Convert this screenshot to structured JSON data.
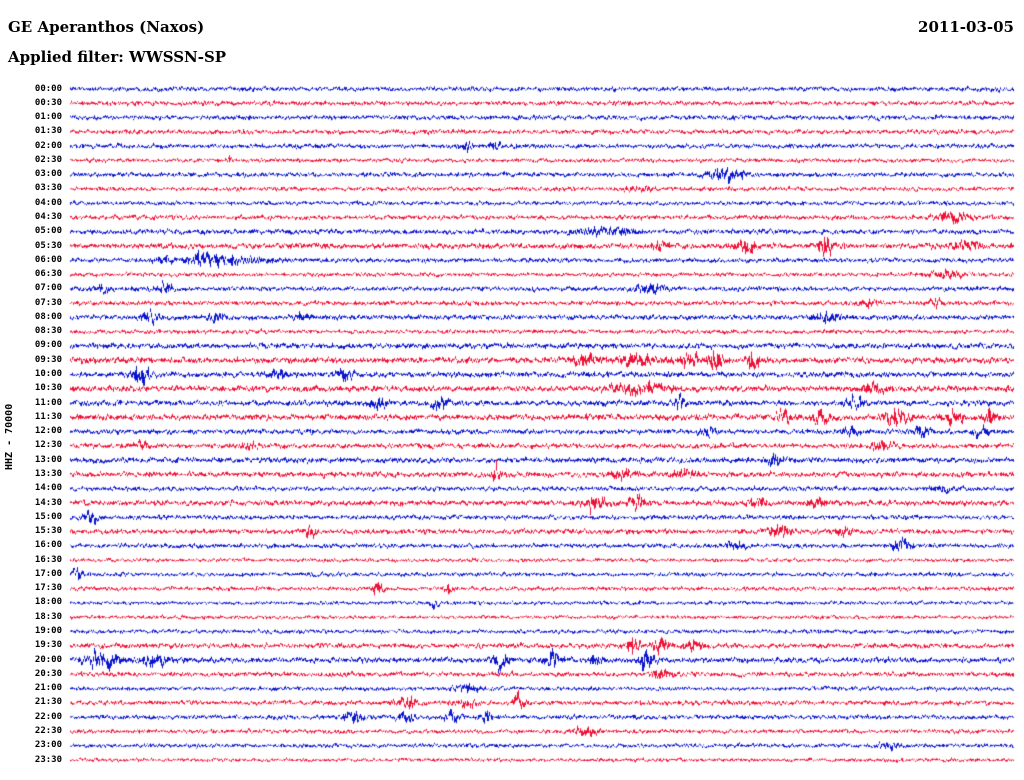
{
  "chart_data": {
    "type": "line",
    "subtype": "helicorder-seismogram",
    "title": "GE Aperanthos (Naxos)",
    "date": "2011-03-05",
    "filter_label": "Applied filter: WWSSN-SP",
    "side_label": "HHZ - 70000",
    "row_minutes": 30,
    "colors": {
      "blue": "#0a14cc",
      "red": "#ee1136"
    },
    "rows": [
      {
        "t": "00:00",
        "c": "blue",
        "a": 1.0
      },
      {
        "t": "00:30",
        "c": "red",
        "a": 1.0
      },
      {
        "t": "01:00",
        "c": "blue",
        "a": 1.0
      },
      {
        "t": "01:30",
        "c": "red",
        "a": 1.0
      },
      {
        "t": "02:00",
        "c": "blue",
        "a": 1.0
      },
      {
        "t": "02:30",
        "c": "red",
        "a": 0.9
      },
      {
        "t": "03:00",
        "c": "blue",
        "a": 1.0
      },
      {
        "t": "03:30",
        "c": "red",
        "a": 0.9
      },
      {
        "t": "04:00",
        "c": "blue",
        "a": 0.9
      },
      {
        "t": "04:30",
        "c": "red",
        "a": 1.0
      },
      {
        "t": "05:00",
        "c": "blue",
        "a": 1.1
      },
      {
        "t": "05:30",
        "c": "red",
        "a": 1.2
      },
      {
        "t": "06:00",
        "c": "blue",
        "a": 1.0
      },
      {
        "t": "06:30",
        "c": "red",
        "a": 0.9
      },
      {
        "t": "07:00",
        "c": "blue",
        "a": 1.0
      },
      {
        "t": "07:30",
        "c": "red",
        "a": 1.0
      },
      {
        "t": "08:00",
        "c": "blue",
        "a": 1.1
      },
      {
        "t": "08:30",
        "c": "red",
        "a": 0.9
      },
      {
        "t": "09:00",
        "c": "blue",
        "a": 1.2
      },
      {
        "t": "09:30",
        "c": "red",
        "a": 1.3
      },
      {
        "t": "10:00",
        "c": "blue",
        "a": 1.2
      },
      {
        "t": "10:30",
        "c": "red",
        "a": 1.3
      },
      {
        "t": "11:00",
        "c": "blue",
        "a": 1.2
      },
      {
        "t": "11:30",
        "c": "red",
        "a": 1.3
      },
      {
        "t": "12:00",
        "c": "blue",
        "a": 1.1
      },
      {
        "t": "12:30",
        "c": "red",
        "a": 1.1
      },
      {
        "t": "13:00",
        "c": "blue",
        "a": 1.2
      },
      {
        "t": "13:30",
        "c": "red",
        "a": 1.2
      },
      {
        "t": "14:00",
        "c": "blue",
        "a": 1.0
      },
      {
        "t": "14:30",
        "c": "red",
        "a": 1.2
      },
      {
        "t": "15:00",
        "c": "blue",
        "a": 1.0
      },
      {
        "t": "15:30",
        "c": "red",
        "a": 1.1
      },
      {
        "t": "16:00",
        "c": "blue",
        "a": 1.0
      },
      {
        "t": "16:30",
        "c": "red",
        "a": 0.8
      },
      {
        "t": "17:00",
        "c": "blue",
        "a": 0.9
      },
      {
        "t": "17:30",
        "c": "red",
        "a": 0.9
      },
      {
        "t": "18:00",
        "c": "blue",
        "a": 0.8
      },
      {
        "t": "18:30",
        "c": "red",
        "a": 0.8
      },
      {
        "t": "19:00",
        "c": "blue",
        "a": 0.9
      },
      {
        "t": "19:30",
        "c": "red",
        "a": 1.1
      },
      {
        "t": "20:00",
        "c": "blue",
        "a": 1.2
      },
      {
        "t": "20:30",
        "c": "red",
        "a": 1.0
      },
      {
        "t": "21:00",
        "c": "blue",
        "a": 0.9
      },
      {
        "t": "21:30",
        "c": "red",
        "a": 1.0
      },
      {
        "t": "22:00",
        "c": "blue",
        "a": 1.0
      },
      {
        "t": "22:30",
        "c": "red",
        "a": 0.9
      },
      {
        "t": "23:00",
        "c": "blue",
        "a": 0.9
      },
      {
        "t": "23:30",
        "c": "red",
        "a": 0.8
      }
    ],
    "events": [
      {
        "r": "02:00",
        "x": 0.42,
        "a": 1.5,
        "w": 0.006
      },
      {
        "r": "02:00",
        "x": 0.45,
        "a": 1.2,
        "w": 0.005
      },
      {
        "r": "02:30",
        "x": 0.168,
        "a": 2.5,
        "w": 0.0015
      },
      {
        "r": "03:00",
        "x": 0.695,
        "a": 3.2,
        "w": 0.012
      },
      {
        "r": "03:30",
        "x": 0.6,
        "a": 1.0,
        "w": 0.01
      },
      {
        "r": "04:30",
        "x": 0.935,
        "a": 2.0,
        "w": 0.012
      },
      {
        "r": "05:00",
        "x": 0.57,
        "a": 1.2,
        "w": 0.02
      },
      {
        "r": "05:30",
        "x": 0.625,
        "a": 1.8,
        "w": 0.006
      },
      {
        "r": "05:30",
        "x": 0.715,
        "a": 2.2,
        "w": 0.008
      },
      {
        "r": "05:30",
        "x": 0.8,
        "a": 4.5,
        "w": 0.005
      },
      {
        "r": "05:30",
        "x": 0.95,
        "a": 1.8,
        "w": 0.01
      },
      {
        "r": "06:00",
        "x": 0.1,
        "a": 1.5,
        "w": 0.008
      },
      {
        "r": "06:00",
        "x": 0.145,
        "a": 3.0,
        "w": 0.015
      },
      {
        "r": "06:00",
        "x": 0.19,
        "a": 1.2,
        "w": 0.02
      },
      {
        "r": "06:30",
        "x": 0.93,
        "a": 1.8,
        "w": 0.012
      },
      {
        "r": "07:00",
        "x": 0.035,
        "a": 2.0,
        "w": 0.006
      },
      {
        "r": "07:00",
        "x": 0.1,
        "a": 1.8,
        "w": 0.008
      },
      {
        "r": "07:00",
        "x": 0.615,
        "a": 2.2,
        "w": 0.01
      },
      {
        "r": "07:30",
        "x": 0.845,
        "a": 1.5,
        "w": 0.008
      },
      {
        "r": "07:30",
        "x": 0.915,
        "a": 1.6,
        "w": 0.006
      },
      {
        "r": "08:00",
        "x": 0.085,
        "a": 2.2,
        "w": 0.006
      },
      {
        "r": "08:00",
        "x": 0.155,
        "a": 1.8,
        "w": 0.006
      },
      {
        "r": "08:00",
        "x": 0.245,
        "a": 1.6,
        "w": 0.006
      },
      {
        "r": "08:00",
        "x": 0.8,
        "a": 1.4,
        "w": 0.01
      },
      {
        "r": "09:30",
        "x": 0.545,
        "a": 2.4,
        "w": 0.01
      },
      {
        "r": "09:30",
        "x": 0.6,
        "a": 1.8,
        "w": 0.012
      },
      {
        "r": "09:30",
        "x": 0.655,
        "a": 2.0,
        "w": 0.008
      },
      {
        "r": "09:30",
        "x": 0.685,
        "a": 2.8,
        "w": 0.006
      },
      {
        "r": "09:30",
        "x": 0.725,
        "a": 3.0,
        "w": 0.006
      },
      {
        "r": "10:00",
        "x": 0.075,
        "a": 3.2,
        "w": 0.007
      },
      {
        "r": "10:00",
        "x": 0.22,
        "a": 1.8,
        "w": 0.006
      },
      {
        "r": "10:00",
        "x": 0.29,
        "a": 1.8,
        "w": 0.006
      },
      {
        "r": "10:30",
        "x": 0.6,
        "a": 1.6,
        "w": 0.02
      },
      {
        "r": "10:30",
        "x": 0.85,
        "a": 1.8,
        "w": 0.008
      },
      {
        "r": "11:00",
        "x": 0.325,
        "a": 2.2,
        "w": 0.007
      },
      {
        "r": "11:00",
        "x": 0.39,
        "a": 2.2,
        "w": 0.007
      },
      {
        "r": "11:00",
        "x": 0.645,
        "a": 3.2,
        "w": 0.003
      },
      {
        "r": "11:00",
        "x": 0.83,
        "a": 1.8,
        "w": 0.006
      },
      {
        "r": "11:30",
        "x": 0.755,
        "a": 2.2,
        "w": 0.006
      },
      {
        "r": "11:30",
        "x": 0.795,
        "a": 2.4,
        "w": 0.006
      },
      {
        "r": "11:30",
        "x": 0.875,
        "a": 2.8,
        "w": 0.008
      },
      {
        "r": "11:30",
        "x": 0.935,
        "a": 2.0,
        "w": 0.006
      },
      {
        "r": "11:30",
        "x": 0.975,
        "a": 2.2,
        "w": 0.005
      },
      {
        "r": "12:00",
        "x": 0.675,
        "a": 1.8,
        "w": 0.006
      },
      {
        "r": "12:00",
        "x": 0.825,
        "a": 1.8,
        "w": 0.006
      },
      {
        "r": "12:00",
        "x": 0.9,
        "a": 2.2,
        "w": 0.006
      },
      {
        "r": "12:00",
        "x": 0.965,
        "a": 1.8,
        "w": 0.005
      },
      {
        "r": "12:30",
        "x": 0.075,
        "a": 1.8,
        "w": 0.006
      },
      {
        "r": "12:30",
        "x": 0.19,
        "a": 1.8,
        "w": 0.005
      },
      {
        "r": "12:30",
        "x": 0.86,
        "a": 1.6,
        "w": 0.008
      },
      {
        "r": "13:00",
        "x": 0.745,
        "a": 1.8,
        "w": 0.006
      },
      {
        "r": "13:30",
        "x": 0.45,
        "a": 3.0,
        "w": 0.003
      },
      {
        "r": "13:30",
        "x": 0.585,
        "a": 1.8,
        "w": 0.008
      },
      {
        "r": "13:30",
        "x": 0.65,
        "a": 1.6,
        "w": 0.008
      },
      {
        "r": "14:00",
        "x": 0.92,
        "a": 1.4,
        "w": 0.01
      },
      {
        "r": "14:30",
        "x": 0.555,
        "a": 2.2,
        "w": 0.008
      },
      {
        "r": "14:30",
        "x": 0.6,
        "a": 1.8,
        "w": 0.006
      },
      {
        "r": "14:30",
        "x": 0.73,
        "a": 1.8,
        "w": 0.006
      },
      {
        "r": "14:30",
        "x": 0.79,
        "a": 2.2,
        "w": 0.006
      },
      {
        "r": "15:00",
        "x": 0.02,
        "a": 2.2,
        "w": 0.006
      },
      {
        "r": "15:30",
        "x": 0.255,
        "a": 1.8,
        "w": 0.005
      },
      {
        "r": "15:30",
        "x": 0.75,
        "a": 2.2,
        "w": 0.008
      },
      {
        "r": "15:30",
        "x": 0.82,
        "a": 1.8,
        "w": 0.006
      },
      {
        "r": "16:00",
        "x": 0.705,
        "a": 1.8,
        "w": 0.006
      },
      {
        "r": "16:00",
        "x": 0.88,
        "a": 2.8,
        "w": 0.007
      },
      {
        "r": "17:00",
        "x": 0.008,
        "a": 3.0,
        "w": 0.004
      },
      {
        "r": "17:30",
        "x": 0.325,
        "a": 2.4,
        "w": 0.005
      },
      {
        "r": "17:30",
        "x": 0.4,
        "a": 1.8,
        "w": 0.005
      },
      {
        "r": "18:00",
        "x": 0.385,
        "a": 1.8,
        "w": 0.004
      },
      {
        "r": "19:30",
        "x": 0.595,
        "a": 3.2,
        "w": 0.005
      },
      {
        "r": "19:30",
        "x": 0.625,
        "a": 3.0,
        "w": 0.005
      },
      {
        "r": "19:30",
        "x": 0.66,
        "a": 2.4,
        "w": 0.006
      },
      {
        "r": "20:00",
        "x": 0.035,
        "a": 2.8,
        "w": 0.012
      },
      {
        "r": "20:00",
        "x": 0.09,
        "a": 1.8,
        "w": 0.01
      },
      {
        "r": "20:00",
        "x": 0.455,
        "a": 2.8,
        "w": 0.006
      },
      {
        "r": "20:00",
        "x": 0.51,
        "a": 2.4,
        "w": 0.006
      },
      {
        "r": "20:00",
        "x": 0.555,
        "a": 1.8,
        "w": 0.005
      },
      {
        "r": "20:00",
        "x": 0.61,
        "a": 2.8,
        "w": 0.006
      },
      {
        "r": "20:30",
        "x": 0.625,
        "a": 2.0,
        "w": 0.008
      },
      {
        "r": "21:00",
        "x": 0.42,
        "a": 1.4,
        "w": 0.01
      },
      {
        "r": "21:30",
        "x": 0.355,
        "a": 2.8,
        "w": 0.007
      },
      {
        "r": "21:30",
        "x": 0.42,
        "a": 2.0,
        "w": 0.006
      },
      {
        "r": "21:30",
        "x": 0.475,
        "a": 2.8,
        "w": 0.005
      },
      {
        "r": "22:00",
        "x": 0.3,
        "a": 2.4,
        "w": 0.007
      },
      {
        "r": "22:00",
        "x": 0.355,
        "a": 2.4,
        "w": 0.006
      },
      {
        "r": "22:00",
        "x": 0.405,
        "a": 2.8,
        "w": 0.006
      },
      {
        "r": "22:00",
        "x": 0.44,
        "a": 2.0,
        "w": 0.005
      },
      {
        "r": "22:30",
        "x": 0.545,
        "a": 2.4,
        "w": 0.008
      },
      {
        "r": "23:00",
        "x": 0.865,
        "a": 1.5,
        "w": 0.008
      }
    ]
  }
}
